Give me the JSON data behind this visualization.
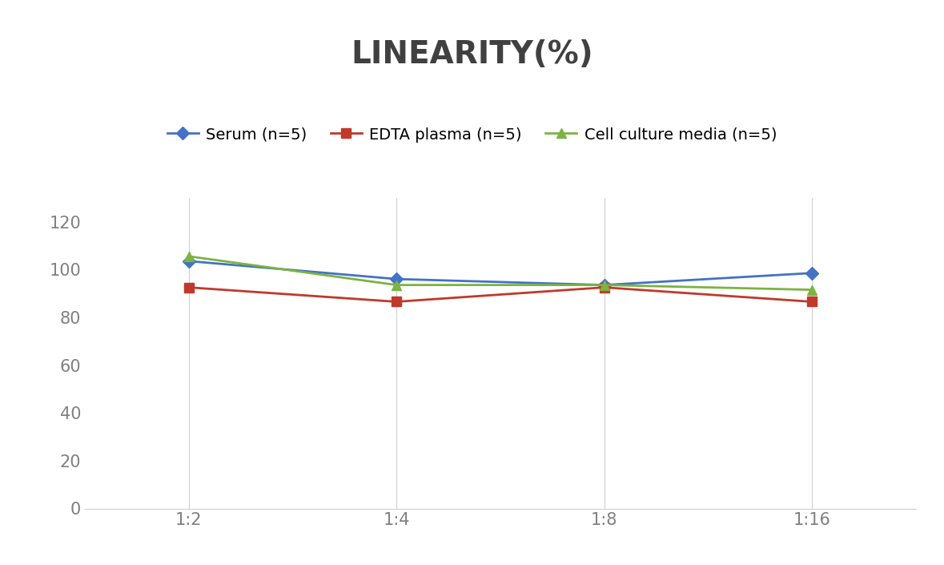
{
  "title": "LINEARITY(%)",
  "title_fontsize": 28,
  "title_fontweight": "bold",
  "title_color": "#404040",
  "x_labels": [
    "1:2",
    "1:4",
    "1:8",
    "1:16"
  ],
  "x_positions": [
    0,
    1,
    2,
    3
  ],
  "series": [
    {
      "label": "Serum (n=5)",
      "values": [
        103.5,
        96.0,
        93.5,
        98.5
      ],
      "color": "#4472C4",
      "marker": "D",
      "marker_size": 8,
      "linewidth": 2
    },
    {
      "label": "EDTA plasma (n=5)",
      "values": [
        92.5,
        86.5,
        92.5,
        86.5
      ],
      "color": "#C0392B",
      "marker": "s",
      "marker_size": 8,
      "linewidth": 2
    },
    {
      "label": "Cell culture media (n=5)",
      "values": [
        105.5,
        93.5,
        93.5,
        91.5
      ],
      "color": "#7CB342",
      "marker": "^",
      "marker_size": 8,
      "linewidth": 2
    }
  ],
  "ylim": [
    0,
    130
  ],
  "yticks": [
    0,
    20,
    40,
    60,
    80,
    100,
    120
  ],
  "grid_color": "#D0D0D0",
  "grid_linewidth": 0.8,
  "background_color": "#FFFFFF",
  "legend_fontsize": 14,
  "tick_fontsize": 15,
  "tick_color": "#808080"
}
